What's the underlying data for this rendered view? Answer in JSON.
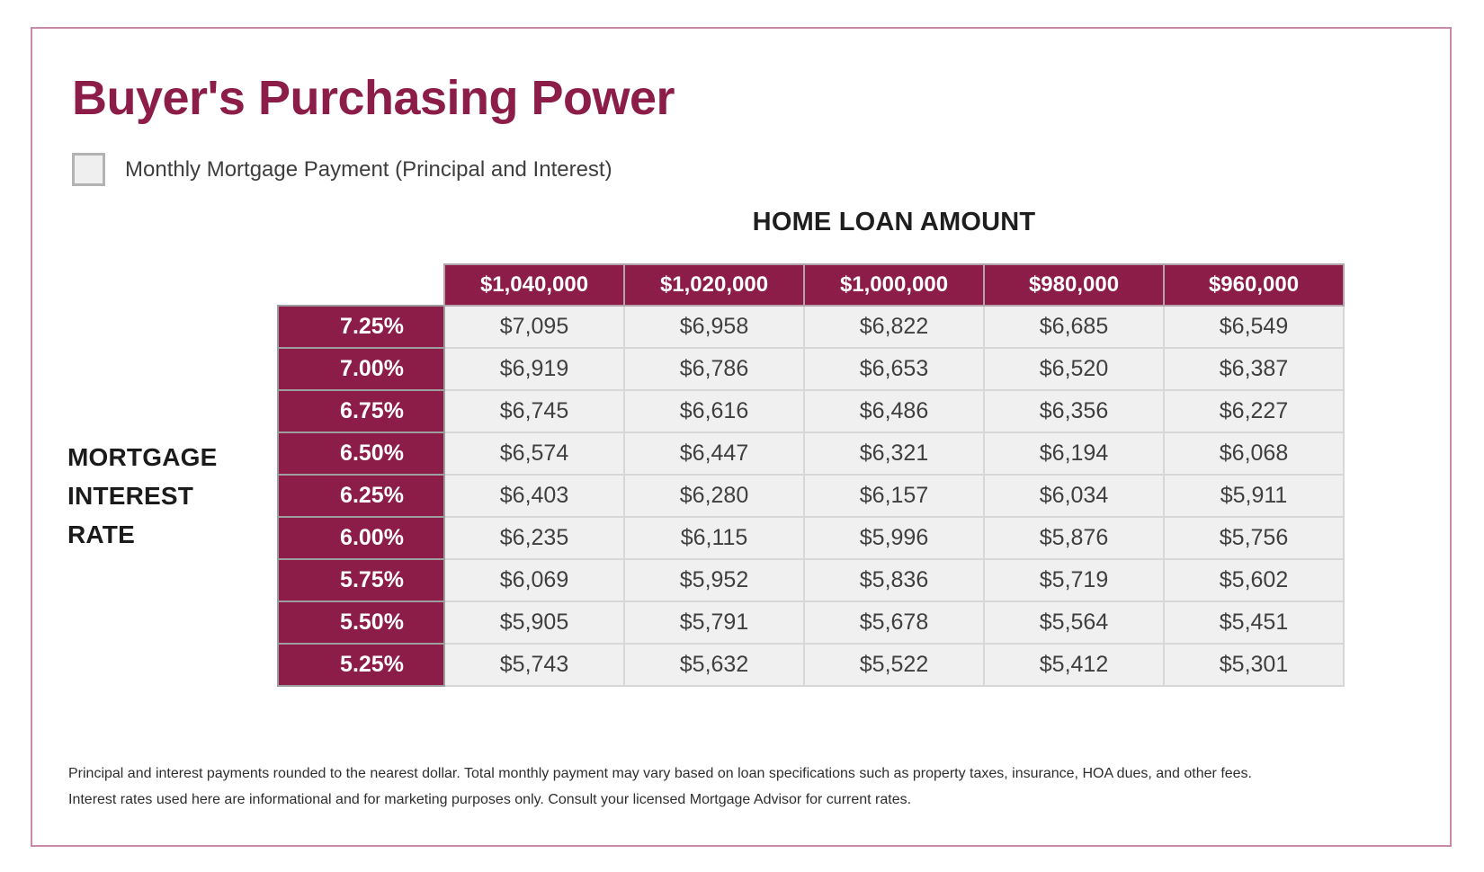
{
  "page": {
    "title": "Buyer's Purchasing Power",
    "legend_label": "Monthly Mortgage Payment (Principal and Interest)",
    "column_axis_title": "HOME LOAN AMOUNT",
    "row_axis_title": [
      "MORTGAGE",
      "INTEREST",
      "RATE"
    ],
    "footnote": {
      "line1": "Principal and interest payments rounded to the nearest dollar. Total monthly payment may vary based on loan specifications such as property taxes, insurance, HOA dues, and other fees.",
      "line2": "Interest rates used here are informational and for marketing purposes only. Consult your licensed Mortgage Advisor for current rates."
    }
  },
  "colors": {
    "brand_maroon": "#8C1D49",
    "frame_border": "#C98BA8",
    "cell_background": "#F0F0F0",
    "cell_text": "#3F3F3F",
    "header_text": "#FFFFFF",
    "legend_swatch_fill": "#EFEFEF",
    "legend_swatch_border": "#B3B3B3"
  },
  "table": {
    "columns": [
      "$1,040,000",
      "$1,020,000",
      "$1,000,000",
      "$980,000",
      "$960,000"
    ],
    "rows": [
      {
        "rate": "7.25%",
        "values": [
          "$7,095",
          "$6,958",
          "$6,822",
          "$6,685",
          "$6,549"
        ]
      },
      {
        "rate": "7.00%",
        "values": [
          "$6,919",
          "$6,786",
          "$6,653",
          "$6,520",
          "$6,387"
        ]
      },
      {
        "rate": "6.75%",
        "values": [
          "$6,745",
          "$6,616",
          "$6,486",
          "$6,356",
          "$6,227"
        ]
      },
      {
        "rate": "6.50%",
        "values": [
          "$6,574",
          "$6,447",
          "$6,321",
          "$6,194",
          "$6,068"
        ]
      },
      {
        "rate": "6.25%",
        "values": [
          "$6,403",
          "$6,280",
          "$6,157",
          "$6,034",
          "$5,911"
        ]
      },
      {
        "rate": "6.00%",
        "values": [
          "$6,235",
          "$6,115",
          "$5,996",
          "$5,876",
          "$5,756"
        ]
      },
      {
        "rate": "5.75%",
        "values": [
          "$6,069",
          "$5,952",
          "$5,836",
          "$5,719",
          "$5,602"
        ]
      },
      {
        "rate": "5.50%",
        "values": [
          "$5,905",
          "$5,791",
          "$5,678",
          "$5,564",
          "$5,451"
        ]
      },
      {
        "rate": "5.25%",
        "values": [
          "$5,743",
          "$5,632",
          "$5,522",
          "$5,412",
          "$5,301"
        ]
      }
    ]
  },
  "chart_data": {
    "type": "table",
    "title": "Buyer's Purchasing Power",
    "legend": "Monthly Mortgage Payment (Principal and Interest)",
    "column_header": "HOME LOAN AMOUNT",
    "row_header": "MORTGAGE INTEREST RATE",
    "columns": [
      1040000,
      1020000,
      1000000,
      980000,
      960000
    ],
    "rows": [
      7.25,
      7.0,
      6.75,
      6.5,
      6.25,
      6.0,
      5.75,
      5.5,
      5.25
    ],
    "values": [
      [
        7095,
        6958,
        6822,
        6685,
        6549
      ],
      [
        6919,
        6786,
        6653,
        6520,
        6387
      ],
      [
        6745,
        6616,
        6486,
        6356,
        6227
      ],
      [
        6574,
        6447,
        6321,
        6194,
        6068
      ],
      [
        6403,
        6280,
        6157,
        6034,
        5911
      ],
      [
        6235,
        6115,
        5996,
        5876,
        5756
      ],
      [
        6069,
        5952,
        5836,
        5719,
        5602
      ],
      [
        5905,
        5791,
        5678,
        5564,
        5451
      ],
      [
        5743,
        5632,
        5522,
        5412,
        5301
      ]
    ]
  }
}
